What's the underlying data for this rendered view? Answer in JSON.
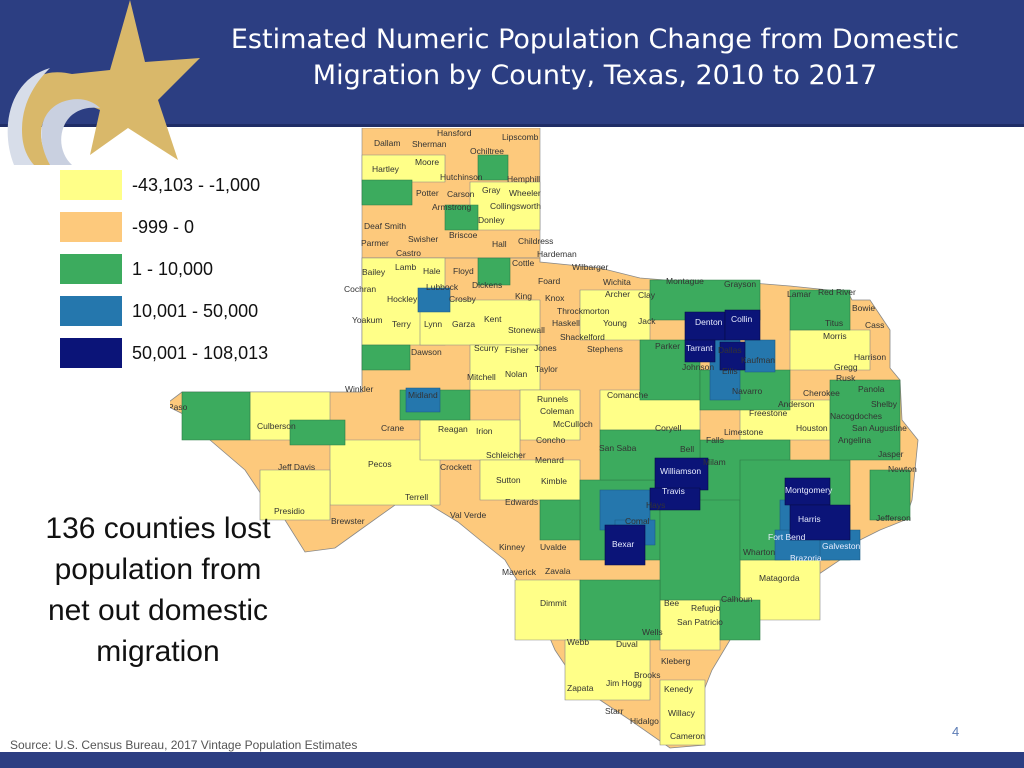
{
  "title": "Estimated Numeric Population Change from Domestic Migration by County, Texas, 2010 to 2017",
  "legend": [
    {
      "label": "-43,103 - -1,000",
      "color": "#ffff88"
    },
    {
      "label": "-999 - 0",
      "color": "#fdc97c"
    },
    {
      "label": "1 - 10,000",
      "color": "#3cab5e"
    },
    {
      "label": "10,001 - 50,000",
      "color": "#2577ad"
    },
    {
      "label": "50,001 - 108,013",
      "color": "#0b1478"
    }
  ],
  "callout": "136 counties lost population from net out domestic migration",
  "source": "Source: U.S. Census Bureau, 2017 Vintage Population Estimates",
  "page_number": "4",
  "county_labels": [
    "Dallam",
    "Sherman",
    "Hansford",
    "Lipscomb",
    "Ochiltree",
    "Hartley",
    "Moore",
    "Hutchinson",
    "Hemphill",
    "Potter",
    "Carson",
    "Gray",
    "Wheeler",
    "Armstrong",
    "Collingsworth",
    "Donley",
    "Deaf Smith",
    "Swisher",
    "Briscoe",
    "Parmer",
    "Castro",
    "Hall",
    "Childress",
    "Hardeman",
    "Cottle",
    "Wilbarger",
    "Bailey",
    "Lamb",
    "Hale",
    "Floyd",
    "Cochran",
    "Lubbock",
    "Dickens",
    "Foard",
    "Wichita",
    "Montague",
    "Grayson",
    "Lamar",
    "Red River",
    "Hockley",
    "Crosby",
    "King",
    "Knox",
    "Archer",
    "Clay",
    "Bowie",
    "Yoakum",
    "Terry",
    "Lynn",
    "Garza",
    "Kent",
    "Stonewall",
    "Haskell",
    "Young",
    "Jack",
    "Denton",
    "Collin",
    "Titus",
    "Cass",
    "Throckmorton",
    "Shackelford",
    "Morris",
    "Dawson",
    "Scurry",
    "Fisher",
    "Jones",
    "Stephens",
    "Parker",
    "Tarrant",
    "Dallas",
    "Kaufman",
    "Harrison",
    "Taylor",
    "Johnson",
    "Ellis",
    "Gregg",
    "Mitchell",
    "Nolan",
    "Rusk",
    "Panola",
    "Cherokee",
    "Navarro",
    "Winkler",
    "Midland",
    "Runnels",
    "Coleman",
    "Comanche",
    "Anderson",
    "Shelby",
    "El Paso",
    "Culberson",
    "Crane",
    "Reagan",
    "Irion",
    "McCulloch",
    "Concho",
    "Coryell",
    "Freestone",
    "Nacogdoches",
    "San Saba",
    "Bell",
    "Limestone",
    "Houston",
    "San Augustine",
    "Falls",
    "Angelina",
    "Pecos",
    "Schleicher",
    "Menard",
    "Milam",
    "Jasper",
    "Jeff Davis",
    "Crockett",
    "Sutton",
    "Kimble",
    "Williamson",
    "Newton",
    "Travis",
    "Montgomery",
    "Terrell",
    "Edwards",
    "Hays",
    "Presidio",
    "Brewster",
    "Val Verde",
    "Harris",
    "Jefferson",
    "Comal",
    "Fort Bend",
    "Kinney",
    "Uvalde",
    "Bexar",
    "Galveston",
    "Wharton",
    "Brazoria",
    "Maverick",
    "Zavala",
    "Matagorda",
    "Dimmit",
    "Bee",
    "Calhoun",
    "Refugio",
    "San Patricio",
    "Wells",
    "Webb",
    "Duval",
    "Kleberg",
    "Jim Hogg",
    "Brooks",
    "Zapata",
    "Kenedy",
    "Starr",
    "Willacy",
    "Hidalgo",
    "Cameron"
  ]
}
